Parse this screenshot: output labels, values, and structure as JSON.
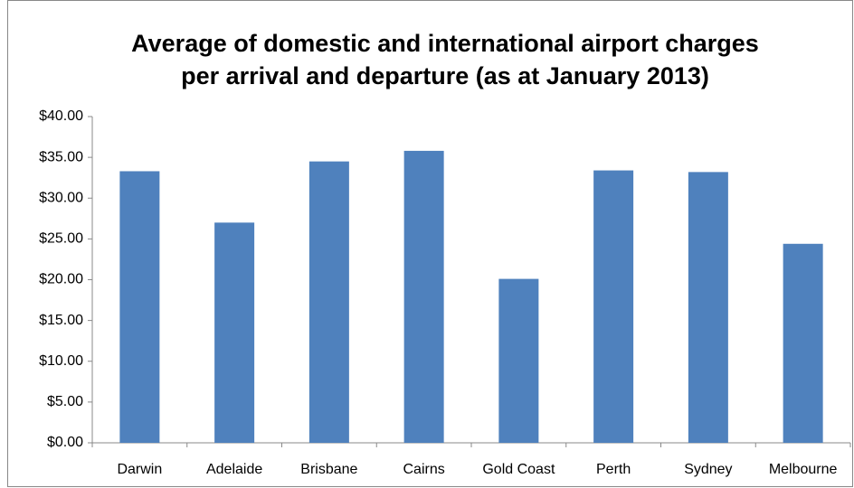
{
  "chart_data": {
    "type": "bar",
    "title": "Average of domestic and international airport charges per arrival and departure (as at January 2013)",
    "categories": [
      "Darwin",
      "Adelaide",
      "Brisbane",
      "Cairns",
      "Gold Coast",
      "Perth",
      "Sydney",
      "Melbourne"
    ],
    "values": [
      33.3,
      27.0,
      34.5,
      35.8,
      20.1,
      33.4,
      33.2,
      24.4
    ],
    "color": "#4f81bd",
    "ylim": [
      0,
      40
    ],
    "yticks": [
      {
        "value": 0,
        "label": "$0.00"
      },
      {
        "value": 5,
        "label": "$5.00"
      },
      {
        "value": 10,
        "label": "$10.00"
      },
      {
        "value": 15,
        "label": "$15.00"
      },
      {
        "value": 20,
        "label": "$20.00"
      },
      {
        "value": 25,
        "label": "$25.00"
      },
      {
        "value": 30,
        "label": "$30.00"
      },
      {
        "value": 35,
        "label": "$35.00"
      },
      {
        "value": 40,
        "label": "$40.00"
      }
    ],
    "grid": false
  }
}
